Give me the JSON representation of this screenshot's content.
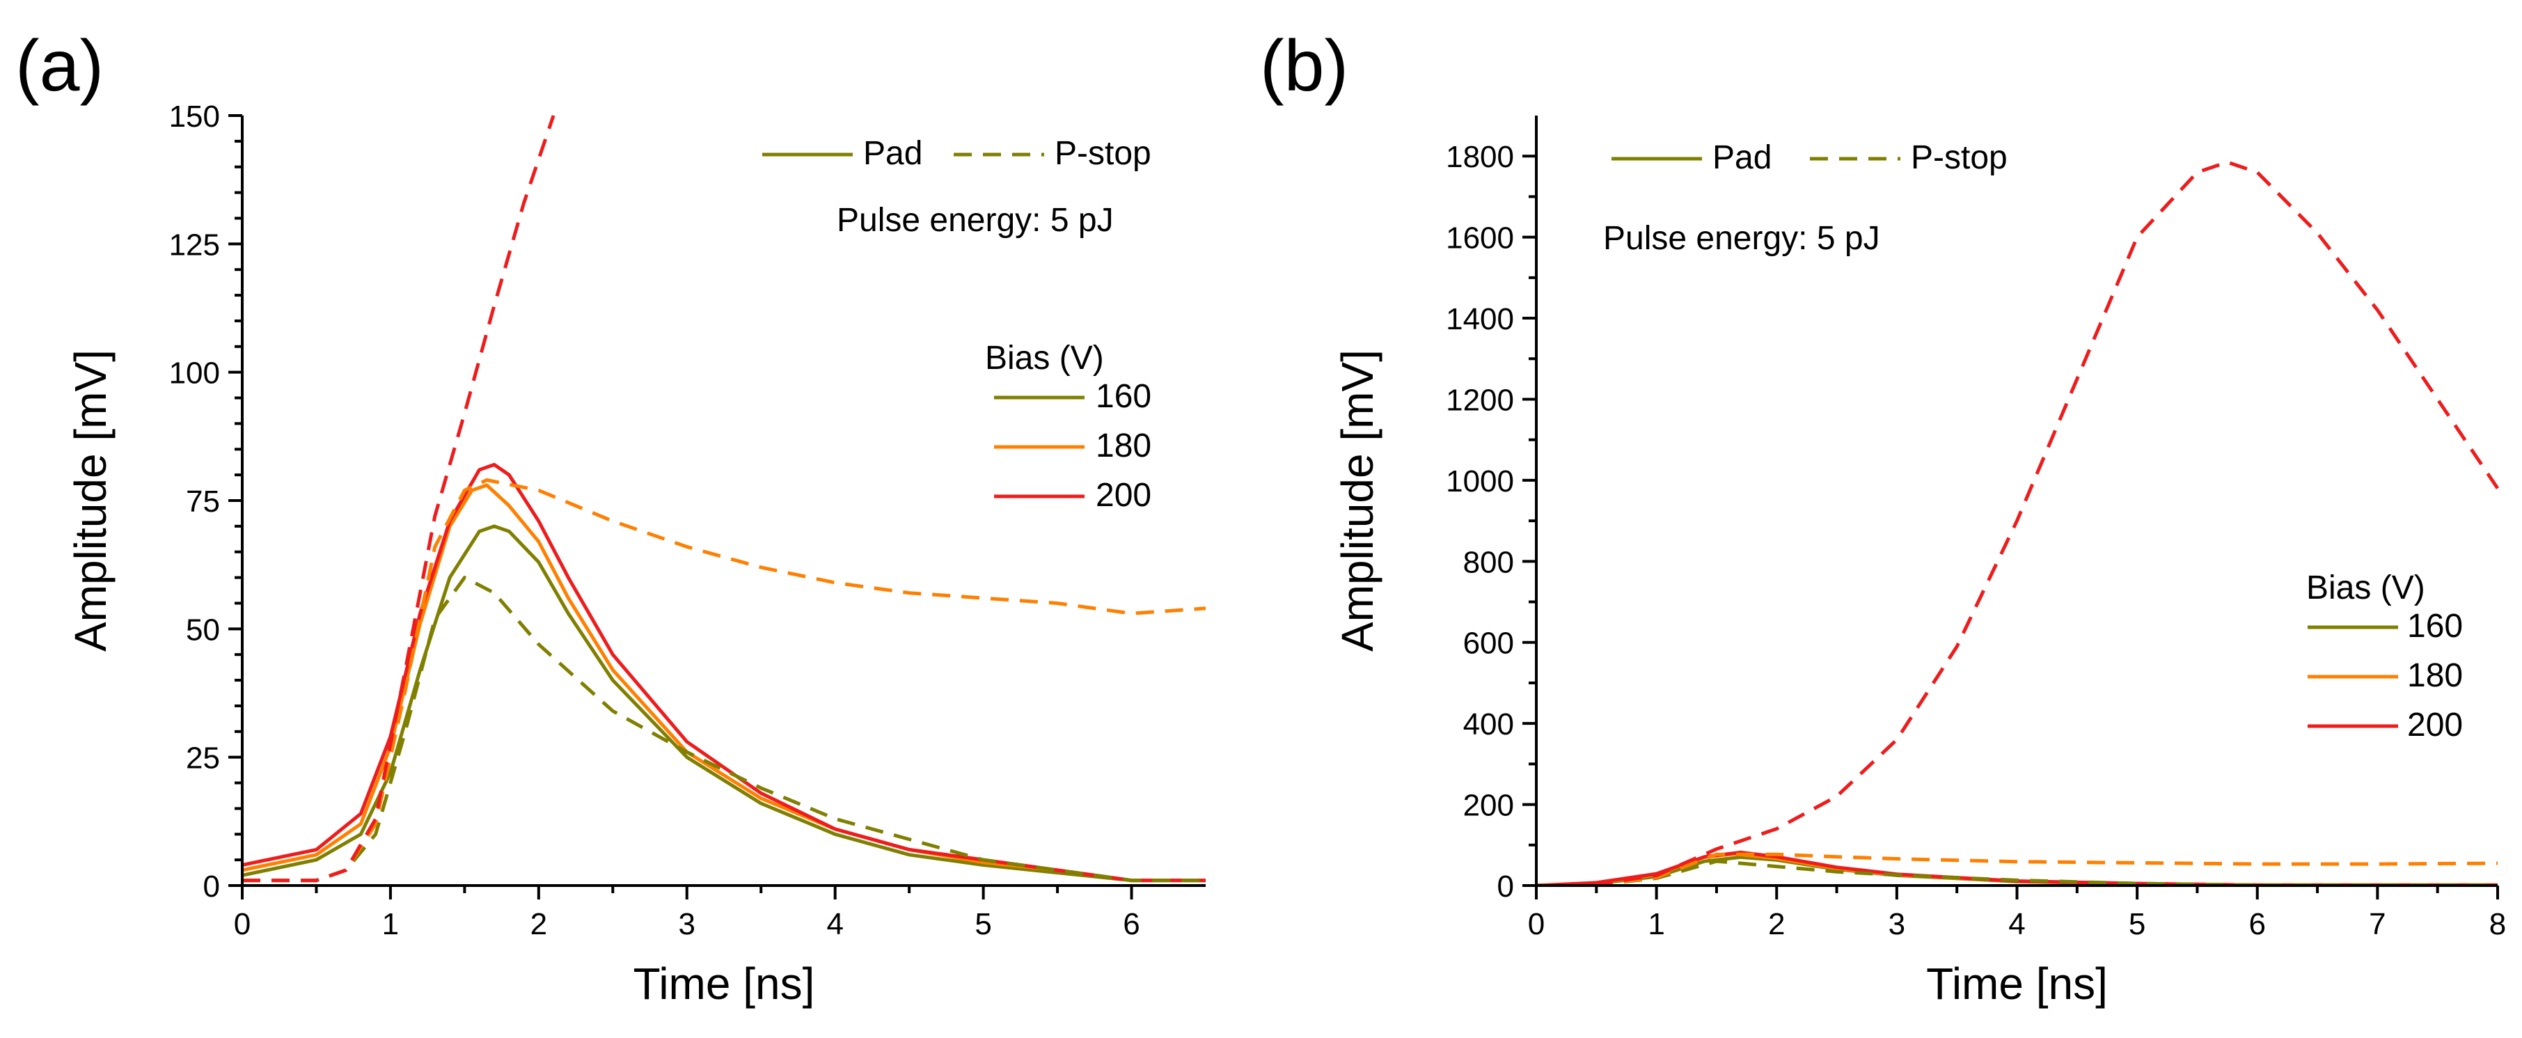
{
  "chart_data": [
    {
      "panel_label": "(a)",
      "type": "line",
      "xlabel": "Time [ns]",
      "ylabel": "Amplitude [mV]",
      "xlim": [
        0,
        6.5
      ],
      "ylim": [
        0,
        150
      ],
      "xticks": [
        0,
        1,
        2,
        3,
        4,
        5,
        6
      ],
      "yticks": [
        0,
        25,
        50,
        75,
        100,
        125,
        150
      ],
      "annotation": "Pulse energy: 5 pJ",
      "style_legend": [
        {
          "label": "Pad",
          "dash": "solid"
        },
        {
          "label": "P-stop",
          "dash": "dashed"
        }
      ],
      "bias_legend": {
        "title": "Bias (V)",
        "entries": [
          {
            "label": "160",
            "color": "#7f7f00"
          },
          {
            "label": "180",
            "color": "#ff8000"
          },
          {
            "label": "200",
            "color": "#ee1c1c"
          }
        ]
      },
      "series": [
        {
          "bias": "160",
          "kind": "Pad",
          "color": "#7f7f00",
          "dash": "solid",
          "x": [
            0,
            0.5,
            0.8,
            1.0,
            1.2,
            1.4,
            1.6,
            1.7,
            1.8,
            2.0,
            2.2,
            2.5,
            3.0,
            3.5,
            4.0,
            4.5,
            5.0,
            5.5,
            6.0,
            6.5
          ],
          "y": [
            2,
            5,
            10,
            22,
            42,
            60,
            69,
            70,
            69,
            63,
            53,
            40,
            25,
            16,
            10,
            6,
            4,
            2.5,
            1,
            1
          ]
        },
        {
          "bias": "180",
          "kind": "Pad",
          "color": "#ff8000",
          "dash": "solid",
          "x": [
            0,
            0.5,
            0.8,
            1.0,
            1.2,
            1.4,
            1.55,
            1.65,
            1.8,
            2.0,
            2.2,
            2.5,
            3.0,
            3.5,
            4.0,
            4.5,
            5.0,
            5.5,
            6.0,
            6.5
          ],
          "y": [
            3,
            6,
            12,
            27,
            51,
            70,
            77,
            78,
            74,
            67,
            56,
            42,
            26,
            17,
            11,
            7,
            4.5,
            3,
            1,
            1
          ]
        },
        {
          "bias": "200",
          "kind": "Pad",
          "color": "#ee1c1c",
          "dash": "solid",
          "x": [
            0,
            0.5,
            0.8,
            1.0,
            1.2,
            1.4,
            1.6,
            1.7,
            1.8,
            2.0,
            2.2,
            2.5,
            3.0,
            3.5,
            4.0,
            4.5,
            5.0,
            5.5,
            6.0,
            6.5
          ],
          "y": [
            4,
            7,
            14,
            29,
            53,
            71,
            81,
            82,
            80,
            71,
            60,
            45,
            28,
            18,
            11,
            7,
            5,
            3,
            1,
            1
          ]
        },
        {
          "bias": "160",
          "kind": "P-stop",
          "color": "#7f7f00",
          "dash": "dashed",
          "x": [
            0,
            0.5,
            0.7,
            0.9,
            1.1,
            1.3,
            1.5,
            1.7,
            2.0,
            2.5,
            3.0,
            3.5,
            4.0,
            4.5,
            5.0,
            5.5,
            6.0,
            6.5
          ],
          "y": [
            1,
            1,
            3,
            10,
            30,
            52,
            60,
            57,
            47,
            34,
            26,
            19,
            13,
            9,
            5,
            3,
            1,
            1
          ]
        },
        {
          "bias": "180",
          "kind": "P-stop",
          "color": "#ff8000",
          "dash": "dashed",
          "x": [
            0,
            0.5,
            0.7,
            0.9,
            1.1,
            1.3,
            1.5,
            1.65,
            2.0,
            2.5,
            3.0,
            3.5,
            4.0,
            4.5,
            5.0,
            5.5,
            6.0,
            6.5
          ],
          "y": [
            1,
            1,
            3,
            12,
            38,
            66,
            77,
            79,
            77,
            71,
            66,
            62,
            59,
            57,
            56,
            55,
            53,
            54
          ]
        },
        {
          "bias": "200",
          "kind": "P-stop",
          "color": "#ee1c1c",
          "dash": "dashed",
          "x": [
            0,
            0.5,
            0.7,
            0.9,
            1.1,
            1.3,
            1.5,
            1.7,
            1.9,
            2.1
          ],
          "y": [
            1,
            1,
            3,
            13,
            42,
            72,
            92,
            113,
            133,
            150
          ]
        }
      ]
    },
    {
      "panel_label": "(b)",
      "type": "line",
      "xlabel": "Time [ns]",
      "ylabel": "Amplitude [mV]",
      "xlim": [
        0,
        8
      ],
      "ylim": [
        0,
        1900
      ],
      "xticks": [
        0,
        1,
        2,
        3,
        4,
        5,
        6,
        7,
        8
      ],
      "yticks": [
        0,
        200,
        400,
        600,
        800,
        1000,
        1200,
        1400,
        1600,
        1800
      ],
      "annotation": "Pulse energy: 5 pJ",
      "style_legend": [
        {
          "label": "Pad",
          "dash": "solid"
        },
        {
          "label": "P-stop",
          "dash": "dashed"
        }
      ],
      "bias_legend": {
        "title": "Bias (V)",
        "entries": [
          {
            "label": "160",
            "color": "#7f7f00"
          },
          {
            "label": "180",
            "color": "#ff8000"
          },
          {
            "label": "200",
            "color": "#ee1c1c"
          }
        ]
      },
      "series": [
        {
          "bias": "160",
          "kind": "Pad",
          "color": "#7f7f00",
          "dash": "solid",
          "x": [
            0,
            0.5,
            1.0,
            1.4,
            1.7,
            2.0,
            2.5,
            3.0,
            4.0,
            5.0,
            6.0,
            7.0,
            8.0
          ],
          "y": [
            0,
            5,
            22,
            60,
            70,
            63,
            40,
            25,
            10,
            4,
            1,
            1,
            1
          ]
        },
        {
          "bias": "180",
          "kind": "Pad",
          "color": "#ff8000",
          "dash": "solid",
          "x": [
            0,
            0.5,
            1.0,
            1.4,
            1.65,
            2.0,
            2.5,
            3.0,
            4.0,
            5.0,
            6.0,
            7.0,
            8.0
          ],
          "y": [
            0,
            6,
            27,
            70,
            78,
            67,
            42,
            26,
            11,
            4.5,
            1,
            1,
            1
          ]
        },
        {
          "bias": "200",
          "kind": "Pad",
          "color": "#ee1c1c",
          "dash": "solid",
          "x": [
            0,
            0.5,
            1.0,
            1.4,
            1.7,
            2.0,
            2.5,
            3.0,
            4.0,
            5.0,
            6.0,
            7.0,
            8.0
          ],
          "y": [
            0,
            7,
            29,
            71,
            82,
            71,
            45,
            28,
            11,
            5,
            1,
            1,
            1
          ]
        },
        {
          "bias": "160",
          "kind": "P-stop",
          "color": "#7f7f00",
          "dash": "dashed",
          "x": [
            0,
            0.5,
            1.0,
            1.5,
            2.0,
            2.5,
            3.0,
            4.0,
            5.0,
            6.0,
            7.0,
            8.0
          ],
          "y": [
            0,
            2,
            18,
            60,
            47,
            34,
            26,
            13,
            5,
            1,
            1,
            1
          ]
        },
        {
          "bias": "180",
          "kind": "P-stop",
          "color": "#ff8000",
          "dash": "dashed",
          "x": [
            0,
            0.5,
            1.0,
            1.5,
            2.0,
            2.5,
            3.0,
            4.0,
            5.0,
            6.0,
            7.0,
            8.0
          ],
          "y": [
            0,
            2,
            20,
            77,
            77,
            71,
            66,
            59,
            56,
            53,
            53,
            55
          ]
        },
        {
          "bias": "200",
          "kind": "P-stop",
          "color": "#ee1c1c",
          "dash": "dashed",
          "x": [
            0,
            0.5,
            1.0,
            1.5,
            2.0,
            2.5,
            3.0,
            3.5,
            4.0,
            4.5,
            5.0,
            5.5,
            5.75,
            6.0,
            6.5,
            7.0,
            7.5,
            8.0
          ],
          "y": [
            0,
            3,
            25,
            90,
            140,
            220,
            360,
            590,
            900,
            1250,
            1600,
            1760,
            1785,
            1760,
            1610,
            1420,
            1200,
            980
          ]
        }
      ]
    }
  ]
}
